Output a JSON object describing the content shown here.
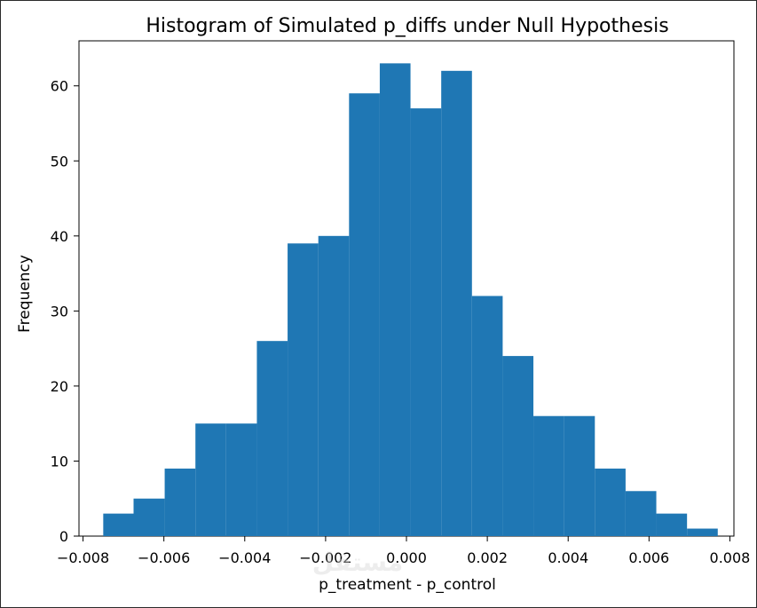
{
  "chart_data": {
    "type": "bar",
    "title": "Histogram of Simulated p_diffs under Null Hypothesis",
    "xlabel": "p_treatment - p_control",
    "ylabel": "Frequency",
    "bin_edges": [
      -0.0075,
      -0.00675,
      -0.00598,
      -0.00522,
      -0.00446,
      -0.0037,
      -0.00294,
      -0.00218,
      -0.00142,
      -0.00066,
      0.0001,
      0.00086,
      0.00162,
      0.00238,
      0.00314,
      0.0039,
      0.00466,
      0.00542,
      0.00618,
      0.00694,
      0.0077
    ],
    "counts": [
      3,
      5,
      9,
      15,
      15,
      26,
      39,
      40,
      59,
      63,
      57,
      62,
      32,
      24,
      16,
      16,
      9,
      6,
      3,
      1
    ],
    "xlim": [
      -0.0081,
      0.0081
    ],
    "ylim": [
      0,
      66
    ],
    "xticks": [
      -0.008,
      -0.006,
      -0.004,
      -0.002,
      0.0,
      0.002,
      0.004,
      0.006,
      0.008
    ],
    "xtick_labels": [
      "−0.008",
      "−0.006",
      "−0.004",
      "−0.002",
      "0.000",
      "0.002",
      "0.004",
      "0.006",
      "0.008"
    ],
    "yticks": [
      0,
      10,
      20,
      30,
      40,
      50,
      60
    ],
    "ytick_labels": [
      "0",
      "10",
      "20",
      "30",
      "40",
      "50",
      "60"
    ],
    "bar_color": "#1f77b4",
    "grid": false,
    "watermark": "مستقل"
  }
}
